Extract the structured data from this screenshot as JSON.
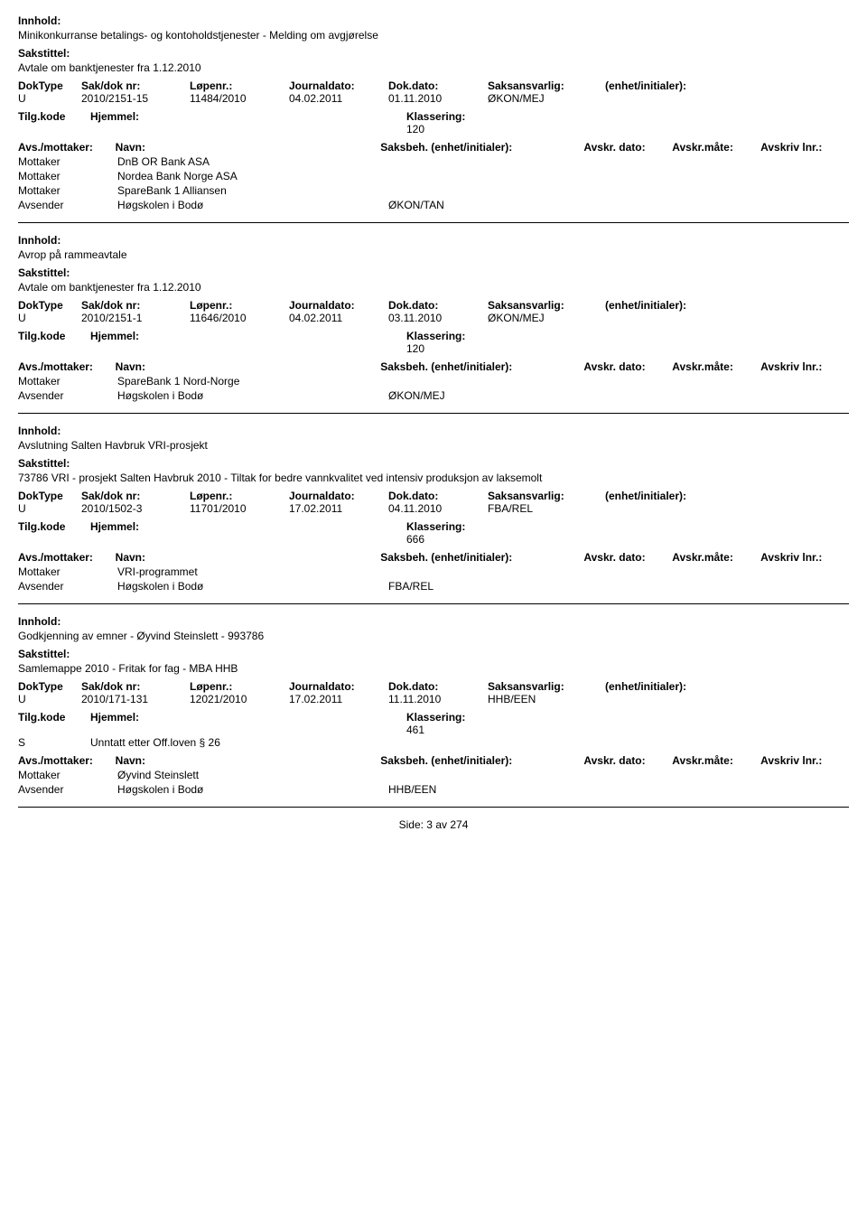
{
  "labels": {
    "innhold": "Innhold:",
    "sakstittel": "Sakstittel:",
    "doktype": "DokType",
    "sakdoknr": "Sak/dok nr:",
    "lopenr": "Løpenr.:",
    "journaldato": "Journaldato:",
    "dokdato": "Dok.dato:",
    "saksansvarlig": "Saksansvarlig:",
    "enhet": "(enhet/initialer):",
    "tilgkode": "Tilg.kode",
    "hjemmel": "Hjemmel:",
    "klassering": "Klassering:",
    "avsmottaker": "Avs./mottaker:",
    "navn": "Navn:",
    "saksbeh": "Saksbeh.",
    "saksbeh_enhet": "(enhet/initialer):",
    "avskrdato": "Avskr. dato:",
    "avskrmate": "Avskr.måte:",
    "avskrivlnr": "Avskriv lnr.:",
    "mottaker": "Mottaker",
    "avsender": "Avsender"
  },
  "records": [
    {
      "innhold": "Minikonkurranse betalings- og kontoholdstjenester - Melding om avgjørelse",
      "sakstittel": "Avtale om banktjenester fra 1.12.2010",
      "doktype": "U",
      "sakdoknr": "2010/2151-15",
      "lopenr": "11484/2010",
      "journaldato": "04.02.2011",
      "dokdato": "01.11.2010",
      "saksansvarlig": "ØKON/MEJ",
      "tilgkode": "",
      "hjemmel": "",
      "klassering": "120",
      "parties": [
        {
          "role": "Mottaker",
          "name": "DnB OR Bank ASA",
          "unit": ""
        },
        {
          "role": "Mottaker",
          "name": "Nordea Bank Norge ASA",
          "unit": ""
        },
        {
          "role": "Mottaker",
          "name": "SpareBank 1 Alliansen",
          "unit": ""
        },
        {
          "role": "Avsender",
          "name": "Høgskolen i Bodø",
          "unit": "ØKON/TAN"
        }
      ]
    },
    {
      "innhold": "Avrop på rammeavtale",
      "sakstittel": "Avtale om banktjenester fra 1.12.2010",
      "doktype": "U",
      "sakdoknr": "2010/2151-1",
      "lopenr": "11646/2010",
      "journaldato": "04.02.2011",
      "dokdato": "03.11.2010",
      "saksansvarlig": "ØKON/MEJ",
      "tilgkode": "",
      "hjemmel": "",
      "klassering": "120",
      "parties": [
        {
          "role": "Mottaker",
          "name": "SpareBank 1 Nord-Norge",
          "unit": ""
        },
        {
          "role": "Avsender",
          "name": "Høgskolen i Bodø",
          "unit": "ØKON/MEJ"
        }
      ]
    },
    {
      "innhold": "Avslutning Salten Havbruk VRI-prosjekt",
      "sakstittel": "73786 VRI - prosjekt Salten Havbruk 2010 - Tiltak for bedre vannkvalitet ved intensiv produksjon av laksemolt",
      "doktype": "U",
      "sakdoknr": "2010/1502-3",
      "lopenr": "11701/2010",
      "journaldato": "17.02.2011",
      "dokdato": "04.11.2010",
      "saksansvarlig": "FBA/REL",
      "tilgkode": "",
      "hjemmel": "",
      "klassering": "666",
      "parties": [
        {
          "role": "Mottaker",
          "name": "VRI-programmet",
          "unit": ""
        },
        {
          "role": "Avsender",
          "name": "Høgskolen i Bodø",
          "unit": "FBA/REL"
        }
      ]
    },
    {
      "innhold": "Godkjenning av emner - Øyvind Steinslett - 993786",
      "sakstittel": "Samlemappe 2010 - Fritak for fag - MBA HHB",
      "doktype": "U",
      "sakdoknr": "2010/171-131",
      "lopenr": "12021/2010",
      "journaldato": "17.02.2011",
      "dokdato": "11.11.2010",
      "saksansvarlig": "HHB/EEN",
      "tilgkode": "S",
      "hjemmel": "Unntatt etter Off.loven § 26",
      "klassering": "461",
      "parties": [
        {
          "role": "Mottaker",
          "name": "Øyvind Steinslett",
          "unit": ""
        },
        {
          "role": "Avsender",
          "name": "Høgskolen i Bodø",
          "unit": "HHB/EEN"
        }
      ]
    }
  ],
  "footer": {
    "side_label": "Side:",
    "page": "3",
    "av": "av",
    "total": "274"
  }
}
